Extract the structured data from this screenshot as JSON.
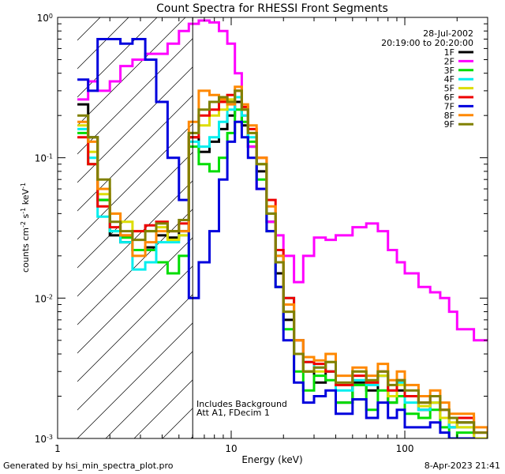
{
  "chart_data": {
    "type": "line",
    "title": "Count Spectra for RHESSI Front Segments",
    "xlabel": "Energy (keV)",
    "ylabel": "counts cm^-2 s^-1 keV^-1",
    "xscale": "log",
    "yscale": "log",
    "xlim": [
      1,
      300
    ],
    "ylim": [
      0.001,
      1.0
    ],
    "x_ticks": [
      {
        "value": 1,
        "label": "1"
      },
      {
        "value": 10,
        "label": "10"
      },
      {
        "value": 100,
        "label": "100"
      }
    ],
    "y_ticks": [
      {
        "value": 1.0,
        "label": "10^0"
      },
      {
        "value": 0.1,
        "label": "10^-1"
      },
      {
        "value": 0.01,
        "label": "10^-2"
      },
      {
        "value": 0.001,
        "label": "10^-3"
      }
    ],
    "legend_position": "top-right",
    "date": "28-Jul-2002",
    "time_range": "20:19:00 to 20:20:00",
    "threshold_line_keV": 6,
    "hatched_region_keV": [
      1.3,
      6
    ],
    "annotations": [
      "Includes Background",
      "Att A1, FDecim 1"
    ],
    "footer_left": "Generated by hsi_min_spectra_plot.pro",
    "footer_right": "8-Apr-2023 21:41",
    "series": [
      {
        "name": "1F",
        "color": "#000000",
        "x": [
          1.3,
          1.5,
          1.7,
          2.0,
          2.3,
          2.7,
          3.2,
          3.7,
          4.3,
          5.0,
          5.7,
          6.5,
          7.5,
          8.5,
          9.5,
          10.5,
          11.5,
          12.5,
          14,
          16,
          18,
          20,
          23,
          26,
          30,
          35,
          40,
          50,
          60,
          70,
          80,
          90,
          100,
          120,
          140,
          160,
          180,
          200,
          250,
          300
        ],
        "values": [
          0.24,
          0.14,
          0.05,
          0.028,
          0.025,
          0.022,
          0.023,
          0.028,
          0.027,
          0.03,
          0.14,
          0.11,
          0.13,
          0.16,
          0.2,
          0.25,
          0.17,
          0.12,
          0.08,
          0.035,
          0.015,
          0.007,
          0.004,
          0.003,
          0.0025,
          0.003,
          0.0018,
          0.0025,
          0.0022,
          0.0028,
          0.0018,
          0.0022,
          0.002,
          0.0016,
          0.0018,
          0.0014,
          0.0012,
          0.0013,
          0.001,
          0.0009
        ]
      },
      {
        "name": "2F",
        "color": "#ff00ff",
        "x": [
          1.3,
          1.5,
          1.7,
          2.0,
          2.3,
          2.7,
          3.2,
          3.7,
          4.3,
          5.0,
          5.7,
          6.5,
          7.5,
          8.5,
          9.5,
          10.5,
          11.5,
          12.5,
          14,
          16,
          18,
          20,
          23,
          26,
          30,
          35,
          40,
          50,
          60,
          70,
          80,
          90,
          100,
          120,
          140,
          160,
          180,
          200,
          250,
          300
        ],
        "values": [
          0.26,
          0.35,
          0.3,
          0.35,
          0.45,
          0.5,
          0.55,
          0.55,
          0.65,
          0.8,
          0.9,
          0.95,
          0.92,
          0.8,
          0.65,
          0.4,
          0.2,
          0.12,
          0.06,
          0.035,
          0.028,
          0.02,
          0.013,
          0.02,
          0.027,
          0.026,
          0.028,
          0.032,
          0.034,
          0.03,
          0.022,
          0.018,
          0.015,
          0.012,
          0.011,
          0.01,
          0.008,
          0.006,
          0.005,
          0.005
        ]
      },
      {
        "name": "3F",
        "color": "#00dd00",
        "x": [
          1.3,
          1.5,
          1.7,
          2.0,
          2.3,
          2.7,
          3.2,
          3.7,
          4.3,
          5.0,
          5.7,
          6.5,
          7.5,
          8.5,
          9.5,
          10.5,
          11.5,
          12.5,
          14,
          16,
          18,
          20,
          23,
          26,
          30,
          35,
          40,
          50,
          60,
          70,
          80,
          90,
          100,
          120,
          140,
          160,
          180,
          200,
          250,
          300
        ],
        "values": [
          0.15,
          0.09,
          0.05,
          0.03,
          0.027,
          0.022,
          0.022,
          0.018,
          0.015,
          0.02,
          0.12,
          0.09,
          0.08,
          0.1,
          0.15,
          0.22,
          0.18,
          0.13,
          0.07,
          0.03,
          0.012,
          0.006,
          0.003,
          0.0022,
          0.0028,
          0.0026,
          0.0018,
          0.0024,
          0.0016,
          0.0022,
          0.0018,
          0.002,
          0.0015,
          0.0014,
          0.0016,
          0.0012,
          0.001,
          0.0011,
          0.0009,
          0.0008
        ]
      },
      {
        "name": "4F",
        "color": "#00eeee",
        "x": [
          1.3,
          1.5,
          1.7,
          2.0,
          2.3,
          2.7,
          3.2,
          3.7,
          4.3,
          5.0,
          5.7,
          6.5,
          7.5,
          8.5,
          9.5,
          10.5,
          11.5,
          12.5,
          14,
          16,
          18,
          20,
          23,
          26,
          30,
          35,
          40,
          50,
          60,
          70,
          80,
          90,
          100,
          120,
          140,
          160,
          180,
          200,
          250,
          300
        ],
        "values": [
          0.16,
          0.1,
          0.038,
          0.03,
          0.025,
          0.016,
          0.018,
          0.025,
          0.025,
          0.028,
          0.13,
          0.12,
          0.14,
          0.18,
          0.22,
          0.27,
          0.2,
          0.14,
          0.09,
          0.04,
          0.02,
          0.01,
          0.005,
          0.0035,
          0.0032,
          0.003,
          0.0022,
          0.0026,
          0.0024,
          0.0028,
          0.0022,
          0.0025,
          0.0018,
          0.0016,
          0.0018,
          0.0014,
          0.0012,
          0.0012,
          0.001,
          0.0009
        ]
      },
      {
        "name": "5F",
        "color": "#dddd00",
        "x": [
          1.3,
          1.5,
          1.7,
          2.0,
          2.3,
          2.7,
          3.2,
          3.7,
          4.3,
          5.0,
          5.7,
          6.5,
          7.5,
          8.5,
          9.5,
          10.5,
          11.5,
          12.5,
          14,
          16,
          18,
          20,
          23,
          26,
          30,
          35,
          40,
          50,
          60,
          70,
          80,
          90,
          100,
          120,
          140,
          160,
          180,
          200,
          250,
          300
        ],
        "values": [
          0.17,
          0.11,
          0.055,
          0.04,
          0.035,
          0.03,
          0.03,
          0.032,
          0.026,
          0.028,
          0.15,
          0.17,
          0.2,
          0.22,
          0.26,
          0.3,
          0.22,
          0.15,
          0.09,
          0.04,
          0.018,
          0.008,
          0.004,
          0.003,
          0.003,
          0.0035,
          0.0024,
          0.003,
          0.0025,
          0.0028,
          0.002,
          0.0024,
          0.002,
          0.0017,
          0.0018,
          0.0014,
          0.0013,
          0.0012,
          0.001,
          0.0009
        ]
      },
      {
        "name": "6F",
        "color": "#ee0000",
        "x": [
          1.3,
          1.5,
          1.7,
          2.0,
          2.3,
          2.7,
          3.2,
          3.7,
          4.3,
          5.0,
          5.7,
          6.5,
          7.5,
          8.5,
          9.5,
          10.5,
          11.5,
          12.5,
          14,
          16,
          18,
          20,
          23,
          26,
          30,
          35,
          40,
          50,
          60,
          70,
          80,
          90,
          100,
          120,
          140,
          160,
          180,
          200,
          250,
          300
        ],
        "values": [
          0.14,
          0.09,
          0.045,
          0.032,
          0.028,
          0.03,
          0.033,
          0.035,
          0.03,
          0.034,
          0.14,
          0.2,
          0.22,
          0.25,
          0.28,
          0.3,
          0.23,
          0.16,
          0.1,
          0.05,
          0.022,
          0.01,
          0.005,
          0.0035,
          0.0034,
          0.003,
          0.0024,
          0.0028,
          0.0025,
          0.003,
          0.0022,
          0.0026,
          0.002,
          0.0018,
          0.002,
          0.0016,
          0.0014,
          0.0014,
          0.0011,
          0.001
        ]
      },
      {
        "name": "7F",
        "color": "#0000dd",
        "x": [
          1.3,
          1.5,
          1.7,
          2.0,
          2.3,
          2.7,
          3.2,
          3.7,
          4.3,
          5.0,
          5.7,
          6.5,
          7.5,
          8.5,
          9.5,
          10.5,
          11.5,
          12.5,
          14,
          16,
          18,
          20,
          23,
          26,
          30,
          35,
          40,
          50,
          60,
          70,
          80,
          90,
          100,
          120,
          140,
          160,
          180,
          200,
          250,
          300
        ],
        "values": [
          0.36,
          0.3,
          0.7,
          0.7,
          0.65,
          0.7,
          0.5,
          0.25,
          0.1,
          0.05,
          0.01,
          0.018,
          0.03,
          0.07,
          0.13,
          0.18,
          0.14,
          0.1,
          0.06,
          0.03,
          0.012,
          0.005,
          0.0025,
          0.0018,
          0.002,
          0.0022,
          0.0015,
          0.0019,
          0.0014,
          0.0018,
          0.0014,
          0.0016,
          0.0012,
          0.0012,
          0.0013,
          0.0011,
          0.001,
          0.001,
          0.0009,
          0.0008
        ]
      },
      {
        "name": "8F",
        "color": "#ff8800",
        "x": [
          1.3,
          1.5,
          1.7,
          2.0,
          2.3,
          2.7,
          3.2,
          3.7,
          4.3,
          5.0,
          5.7,
          6.5,
          7.5,
          8.5,
          9.5,
          10.5,
          11.5,
          12.5,
          14,
          16,
          18,
          20,
          23,
          26,
          30,
          35,
          40,
          50,
          60,
          70,
          80,
          90,
          100,
          120,
          140,
          160,
          180,
          200,
          250,
          300
        ],
        "values": [
          0.18,
          0.13,
          0.06,
          0.04,
          0.028,
          0.02,
          0.025,
          0.03,
          0.03,
          0.03,
          0.18,
          0.3,
          0.28,
          0.26,
          0.24,
          0.32,
          0.24,
          0.17,
          0.1,
          0.045,
          0.02,
          0.009,
          0.005,
          0.0038,
          0.0036,
          0.004,
          0.0028,
          0.0032,
          0.0028,
          0.0034,
          0.0026,
          0.003,
          0.0024,
          0.002,
          0.0022,
          0.0018,
          0.0015,
          0.0015,
          0.0012,
          0.001
        ]
      },
      {
        "name": "9F",
        "color": "#808000",
        "x": [
          1.3,
          1.5,
          1.7,
          2.0,
          2.3,
          2.7,
          3.2,
          3.7,
          4.3,
          5.0,
          5.7,
          6.5,
          7.5,
          8.5,
          9.5,
          10.5,
          11.5,
          12.5,
          14,
          16,
          18,
          20,
          23,
          26,
          30,
          35,
          40,
          50,
          60,
          70,
          80,
          90,
          100,
          120,
          140,
          160,
          180,
          200,
          250,
          300
        ],
        "values": [
          0.2,
          0.14,
          0.07,
          0.035,
          0.03,
          0.026,
          0.03,
          0.034,
          0.03,
          0.036,
          0.15,
          0.22,
          0.25,
          0.27,
          0.25,
          0.3,
          0.22,
          0.15,
          0.09,
          0.04,
          0.018,
          0.008,
          0.004,
          0.003,
          0.0032,
          0.0035,
          0.0025,
          0.003,
          0.0026,
          0.003,
          0.0024,
          0.0026,
          0.0022,
          0.0018,
          0.002,
          0.0016,
          0.0014,
          0.0013,
          0.0011,
          0.001
        ]
      }
    ]
  }
}
